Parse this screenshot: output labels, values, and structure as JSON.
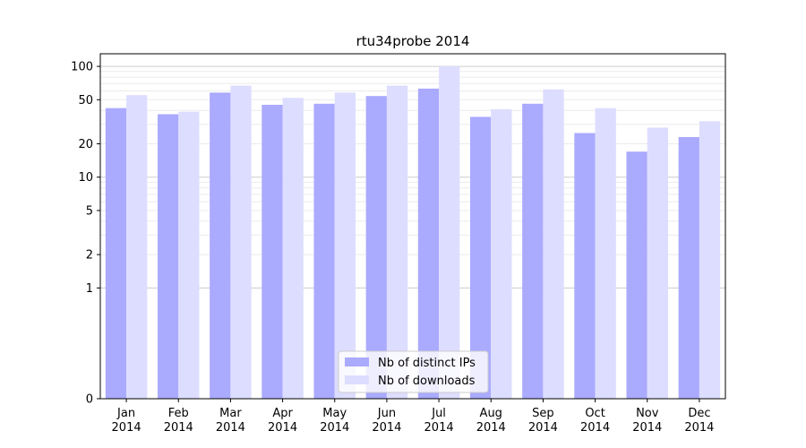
{
  "chart_data": {
    "type": "bar",
    "title": "rtu34probe 2014",
    "xlabel": "",
    "ylabel": "",
    "yscale": "symlog",
    "ylim": [
      0,
      130
    ],
    "yticks": [
      0,
      1,
      2,
      5,
      10,
      20,
      50,
      100
    ],
    "categories": [
      [
        "Jan",
        "2014"
      ],
      [
        "Feb",
        "2014"
      ],
      [
        "Mar",
        "2014"
      ],
      [
        "Apr",
        "2014"
      ],
      [
        "May",
        "2014"
      ],
      [
        "Jun",
        "2014"
      ],
      [
        "Jul",
        "2014"
      ],
      [
        "Aug",
        "2014"
      ],
      [
        "Sep",
        "2014"
      ],
      [
        "Oct",
        "2014"
      ],
      [
        "Nov",
        "2014"
      ],
      [
        "Dec",
        "2014"
      ]
    ],
    "series": [
      {
        "name": "Nb of distinct IPs",
        "color": "#aaaaff",
        "values": [
          42,
          37,
          58,
          45,
          46,
          54,
          63,
          35,
          46,
          25,
          17,
          23
        ]
      },
      {
        "name": "Nb of downloads",
        "color": "#ddddff",
        "values": [
          55,
          39,
          67,
          52,
          58,
          67,
          100,
          41,
          62,
          42,
          28,
          32
        ]
      }
    ],
    "grid": true,
    "legend": "lower-center"
  }
}
